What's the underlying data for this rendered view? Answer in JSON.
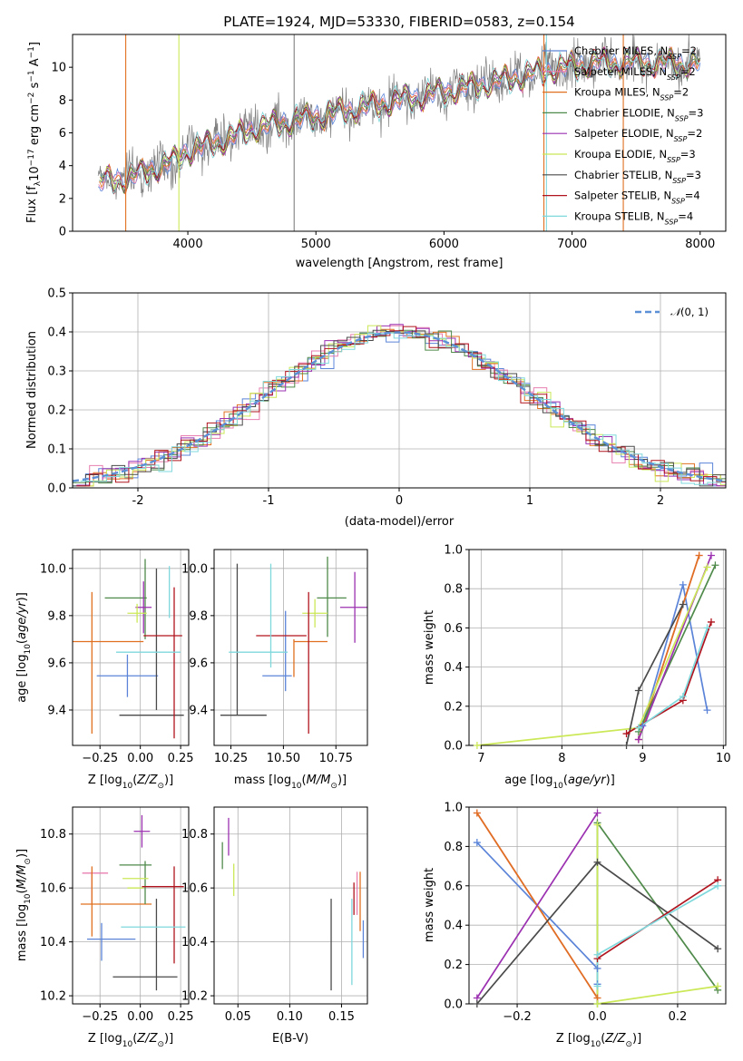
{
  "figure": {
    "title": "PLATE=1924, MJD=53330, FIBERID=0583, z=0.154"
  },
  "colors": {
    "chabrier_miles": "#5b84d8",
    "salpeter_miles": "#e87fb0",
    "kroupa_miles": "#e07020",
    "chabrier_elodie": "#4f8a4a",
    "salpeter_elodie": "#9b30b0",
    "kroupa_elodie": "#cbe857",
    "chabrier_stelib": "#4a4a4a",
    "salpeter_stelib": "#b0141e",
    "kroupa_stelib": "#7fd8dc",
    "data": "#808080",
    "normal": "#5b8fd6",
    "grid": "#b0b0b0"
  },
  "legend": {
    "items": [
      {
        "label": "Chabrier MILES, N",
        "sub": "SSP",
        "suffix": "=2",
        "color_key": "chabrier_miles"
      },
      {
        "label": "Salpeter MILES, N",
        "sub": "SSP",
        "suffix": "=2",
        "color_key": "salpeter_miles"
      },
      {
        "label": "Kroupa MILES, N",
        "sub": "SSP",
        "suffix": "=2",
        "color_key": "kroupa_miles"
      },
      {
        "label": "Chabrier ELODIE, N",
        "sub": "SSP",
        "suffix": "=3",
        "color_key": "chabrier_elodie"
      },
      {
        "label": "Salpeter ELODIE, N",
        "sub": "SSP",
        "suffix": "=2",
        "color_key": "salpeter_elodie"
      },
      {
        "label": "Kroupa ELODIE, N",
        "sub": "SSP",
        "suffix": "=3",
        "color_key": "kroupa_elodie"
      },
      {
        "label": "Chabrier STELIB, N",
        "sub": "SSP",
        "suffix": "=3",
        "color_key": "chabrier_stelib"
      },
      {
        "label": "Salpeter STELIB, N",
        "sub": "SSP",
        "suffix": "=4",
        "color_key": "salpeter_stelib"
      },
      {
        "label": "Kroupa STELIB, N",
        "sub": "SSP",
        "suffix": "=4",
        "color_key": "kroupa_stelib"
      }
    ]
  },
  "chart_data": [
    {
      "id": "spectrum",
      "type": "line",
      "title": "PLATE=1924, MJD=53330, FIBERID=0583, z=0.154",
      "xlabel": "wavelength [Angstrom, rest frame]",
      "ylabel": "Flux [f_λ10^-17 erg cm^-2 s^-1 A^-1]",
      "xlim": [
        3100,
        8200
      ],
      "ylim": [
        0,
        12
      ],
      "xticks": [
        4000,
        5000,
        6000,
        7000,
        8000
      ],
      "yticks": [
        0,
        2,
        4,
        6,
        8,
        10
      ],
      "grid": false,
      "legend_placement": "upper-right",
      "continuum_x": [
        3300,
        3500,
        3700,
        3900,
        4000,
        4300,
        4500,
        4800,
        5200,
        5600,
        6000,
        6400,
        6800,
        7200,
        7600,
        8000
      ],
      "continuum_y": [
        3.0,
        3.2,
        3.7,
        4.3,
        4.9,
        5.6,
        6.2,
        6.7,
        7.3,
        7.9,
        8.5,
        9.1,
        9.8,
        10.3,
        10.3,
        10.2
      ]
    },
    {
      "id": "residual_hist",
      "type": "line",
      "xlabel": "(data-model)/error",
      "ylabel": "Normed distribution",
      "xlim": [
        -2.5,
        2.5
      ],
      "ylim": [
        0,
        0.5
      ],
      "xticks": [
        -2,
        -1,
        0,
        1,
        2
      ],
      "yticks": [
        0.0,
        0.1,
        0.2,
        0.3,
        0.4,
        0.5
      ],
      "grid": true,
      "legend_placement": "upper-right",
      "legend_label": "N(0,1)",
      "bin_width": 0.1
    },
    {
      "id": "age_vs_z",
      "type": "scatter",
      "xlabel": "Z [log10(Z/Z☉)]",
      "ylabel": "age  [log10(age/yr)]",
      "xlim": [
        -0.42,
        0.3
      ],
      "ylim": [
        9.25,
        10.08
      ],
      "xticks": [
        -0.25,
        0.0,
        0.25
      ],
      "xtick_labels": [
        "−0.25",
        "0.00",
        "0.25"
      ],
      "yticks": [
        9.4,
        9.6,
        9.8,
        10.0
      ],
      "grid": true,
      "points": [
        {
          "key": "chabrier_miles",
          "x": -0.08,
          "xerr": 0.19,
          "y": 9.545,
          "yerr": 0.09
        },
        {
          "key": "salpeter_miles",
          "x": -0.3,
          "xerr": 0.0,
          "y": 9.55,
          "yerr": 0.0
        },
        {
          "key": "kroupa_miles",
          "x": -0.2,
          "xerr": 0.22,
          "y": 9.69,
          "yerr": 0.0
        },
        {
          "key": "kroupa_miles_v",
          "x": -0.3,
          "xerr": 0.0,
          "y": 9.6,
          "yerr": 0.3
        },
        {
          "key": "chabrier_elodie",
          "x": 0.03,
          "xerr": 0.0,
          "y": 9.87,
          "yerr": 0.17
        },
        {
          "key": "chabrier_elodie_h",
          "x": -0.09,
          "xerr": 0.13,
          "y": 9.875,
          "yerr": 0.0
        },
        {
          "key": "salpeter_elodie",
          "x": 0.02,
          "xerr": 0.05,
          "y": 9.835,
          "yerr": 0.11
        },
        {
          "key": "kroupa_elodie",
          "x": -0.02,
          "xerr": 0.06,
          "y": 9.81,
          "yerr": 0.04
        },
        {
          "key": "chabrier_stelib",
          "x": 0.07,
          "xerr": 0.2,
          "y": 9.378,
          "yerr": 0.0
        },
        {
          "key": "chabrier_stelib_v",
          "x": 0.1,
          "xerr": 0.0,
          "y": 9.7,
          "yerr": 0.3
        },
        {
          "key": "salpeter_stelib",
          "x": 0.14,
          "xerr": 0.12,
          "y": 9.715,
          "yerr": 0.0
        },
        {
          "key": "salpeter_stelib_v",
          "x": 0.21,
          "xerr": 0.0,
          "y": 9.6,
          "yerr": 0.32
        },
        {
          "key": "kroupa_stelib",
          "x": 0.05,
          "xerr": 0.2,
          "y": 9.645,
          "yerr": 0.0
        },
        {
          "key": "kroupa_stelib_v",
          "x": 0.18,
          "xerr": 0.0,
          "y": 9.9,
          "yerr": 0.11
        }
      ]
    },
    {
      "id": "age_vs_mass",
      "type": "scatter",
      "xlabel": "mass [log10(M/M☉)]",
      "xlim": [
        10.17,
        10.9
      ],
      "ylim": [
        9.25,
        10.08
      ],
      "xticks": [
        10.25,
        10.5,
        10.75
      ],
      "xtick_labels": [
        "10.25",
        "10.50",
        "10.75"
      ],
      "yticks": [
        9.4,
        9.6,
        9.8,
        10.0
      ],
      "grid": true,
      "points": [
        {
          "key": "chabrier_miles",
          "x": 10.47,
          "xerr": 0.07,
          "y": 9.545,
          "yerr": 0.0
        },
        {
          "key": "chabrier_miles_v",
          "x": 10.51,
          "xerr": 0.0,
          "y": 9.65,
          "yerr": 0.17
        },
        {
          "key": "salpeter_miles",
          "x": 10.64,
          "xerr": 0.0,
          "y": 9.82,
          "yerr": 0.0
        },
        {
          "key": "kroupa_miles",
          "x": 10.63,
          "xerr": 0.08,
          "y": 9.69,
          "yerr": 0.0
        },
        {
          "key": "kroupa_miles_v",
          "x": 10.55,
          "xerr": 0.0,
          "y": 9.62,
          "yerr": 0.08
        },
        {
          "key": "chabrier_elodie",
          "x": 10.73,
          "xerr": 0.07,
          "y": 9.875,
          "yerr": 0.0
        },
        {
          "key": "chabrier_elodie_v",
          "x": 10.71,
          "xerr": 0.0,
          "y": 9.88,
          "yerr": 0.17
        },
        {
          "key": "salpeter_elodie",
          "x": 10.84,
          "xerr": 0.07,
          "y": 9.835,
          "yerr": 0.15
        },
        {
          "key": "kroupa_elodie",
          "x": 10.65,
          "xerr": 0.06,
          "y": 9.81,
          "yerr": 0.06
        },
        {
          "key": "chabrier_stelib",
          "x": 10.31,
          "xerr": 0.11,
          "y": 9.378,
          "yerr": 0.0
        },
        {
          "key": "chabrier_stelib_v",
          "x": 10.28,
          "xerr": 0.0,
          "y": 9.7,
          "yerr": 0.32
        },
        {
          "key": "salpeter_stelib",
          "x": 10.49,
          "xerr": 0.12,
          "y": 9.715,
          "yerr": 0.0
        },
        {
          "key": "salpeter_stelib_v",
          "x": 10.62,
          "xerr": 0.0,
          "y": 9.6,
          "yerr": 0.3
        },
        {
          "key": "kroupa_stelib",
          "x": 10.38,
          "xerr": 0.14,
          "y": 9.645,
          "yerr": 0.0
        },
        {
          "key": "kroupa_stelib_v",
          "x": 10.44,
          "xerr": 0.0,
          "y": 9.8,
          "yerr": 0.22
        }
      ]
    },
    {
      "id": "weight_vs_age",
      "type": "line",
      "xlabel": "age  [log10(age/yr)]",
      "ylabel": "mass weight",
      "xlim": [
        6.85,
        10.03
      ],
      "ylim": [
        0,
        1
      ],
      "xticks": [
        7,
        8,
        9,
        10
      ],
      "yticks": [
        0.0,
        0.2,
        0.4,
        0.6,
        0.8,
        1.0
      ],
      "grid": true,
      "series": [
        {
          "key": "chabrier_miles",
          "x": [
            9.0,
            9.5,
            9.8
          ],
          "y": [
            0.1,
            0.82,
            0.18
          ]
        },
        {
          "key": "salpeter_miles",
          "x": [
            8.95,
            9.7
          ],
          "y": [
            0.03,
            0.97
          ]
        },
        {
          "key": "kroupa_miles",
          "x": [
            8.95,
            9.7
          ],
          "y": [
            0.03,
            0.97
          ]
        },
        {
          "key": "chabrier_elodie",
          "x": [
            8.95,
            9.9
          ],
          "y": [
            0.07,
            0.92
          ]
        },
        {
          "key": "salpeter_elodie",
          "x": [
            8.95,
            9.85
          ],
          "y": [
            0.03,
            0.97
          ]
        },
        {
          "key": "kroupa_elodie",
          "x": [
            6.95,
            8.95,
            9.8
          ],
          "y": [
            0.0,
            0.09,
            0.91
          ]
        },
        {
          "key": "chabrier_stelib",
          "x": [
            8.8,
            8.95,
            9.5
          ],
          "y": [
            0.0,
            0.28,
            0.72
          ]
        },
        {
          "key": "salpeter_stelib",
          "x": [
            8.8,
            9.5,
            9.85
          ],
          "y": [
            0.06,
            0.23,
            0.63
          ]
        },
        {
          "key": "kroupa_stelib",
          "x": [
            8.95,
            9.5,
            9.8
          ],
          "y": [
            0.09,
            0.25,
            0.6
          ]
        }
      ]
    },
    {
      "id": "mass_vs_z",
      "type": "scatter",
      "xlabel": "Z [log10(Z/Z☉)]",
      "ylabel": "mass [log10(M/M☉)]",
      "xlim": [
        -0.42,
        0.3
      ],
      "ylim": [
        10.17,
        10.9
      ],
      "xticks": [
        -0.25,
        0.0,
        0.25
      ],
      "xtick_labels": [
        "−0.25",
        "0.00",
        "0.25"
      ],
      "yticks": [
        10.2,
        10.4,
        10.6,
        10.8
      ],
      "grid": true,
      "points": [
        {
          "key": "chabrier_miles",
          "x": -0.18,
          "xerr": 0.15,
          "y": 10.41,
          "yerr": 0.0
        },
        {
          "key": "chabrier_miles_v",
          "x": -0.24,
          "xerr": 0.0,
          "y": 10.4,
          "yerr": 0.07
        },
        {
          "key": "salpeter_miles",
          "x": -0.28,
          "xerr": 0.08,
          "y": 10.655,
          "yerr": 0.0
        },
        {
          "key": "salpeter_miles_v",
          "x": -0.3,
          "xerr": 0.0,
          "y": 10.6,
          "yerr": 0.06
        },
        {
          "key": "kroupa_miles",
          "x": -0.15,
          "xerr": 0.22,
          "y": 10.54,
          "yerr": 0.0
        },
        {
          "key": "kroupa_miles_v",
          "x": -0.3,
          "xerr": 0.0,
          "y": 10.55,
          "yerr": 0.13
        },
        {
          "key": "chabrier_elodie",
          "x": -0.03,
          "xerr": 0.1,
          "y": 10.685,
          "yerr": 0.0
        },
        {
          "key": "chabrier_elodie_v",
          "x": 0.03,
          "xerr": 0.0,
          "y": 10.62,
          "yerr": 0.08
        },
        {
          "key": "salpeter_elodie",
          "x": 0.01,
          "xerr": 0.05,
          "y": 10.81,
          "yerr": 0.06
        },
        {
          "key": "kroupa_elodie",
          "x": -0.03,
          "xerr": 0.08,
          "y": 10.635,
          "yerr": 0.0
        },
        {
          "key": "kroupa_elodie_h",
          "x": -0.03,
          "xerr": 0.05,
          "y": 10.6,
          "yerr": 0.0
        },
        {
          "key": "chabrier_stelib",
          "x": 0.03,
          "xerr": 0.2,
          "y": 10.27,
          "yerr": 0.0
        },
        {
          "key": "chabrier_stelib_v",
          "x": 0.1,
          "xerr": 0.0,
          "y": 10.39,
          "yerr": 0.17
        },
        {
          "key": "salpeter_stelib",
          "x": 0.14,
          "xerr": 0.13,
          "y": 10.605,
          "yerr": 0.0
        },
        {
          "key": "salpeter_stelib_v",
          "x": 0.21,
          "xerr": 0.0,
          "y": 10.5,
          "yerr": 0.18
        },
        {
          "key": "kroupa_stelib",
          "x": 0.08,
          "xerr": 0.2,
          "y": 10.455,
          "yerr": 0.0
        }
      ]
    },
    {
      "id": "mass_vs_ebv",
      "type": "scatter",
      "xlabel": "E(B-V)",
      "xlim": [
        0.027,
        0.175
      ],
      "ylim": [
        10.17,
        10.9
      ],
      "xticks": [
        0.05,
        0.1,
        0.15
      ],
      "xtick_labels": [
        "0.05",
        "0.10",
        "0.15"
      ],
      "yticks": [
        10.2,
        10.4,
        10.6,
        10.8
      ],
      "grid": true,
      "points": [
        {
          "key": "salpeter_elodie",
          "x": 0.041,
          "yerr": 0.07,
          "y": 10.79
        },
        {
          "key": "chabrier_elodie",
          "x": 0.035,
          "yerr": 0.05,
          "y": 10.72
        },
        {
          "key": "kroupa_elodie",
          "x": 0.046,
          "yerr": 0.06,
          "y": 10.63
        },
        {
          "key": "chabrier_stelib",
          "x": 0.14,
          "yerr": 0.17,
          "y": 10.39
        },
        {
          "key": "kroupa_stelib",
          "x": 0.16,
          "yerr": 0.16,
          "y": 10.4
        },
        {
          "key": "salpeter_stelib",
          "x": 0.162,
          "yerr": 0.06,
          "y": 10.56
        },
        {
          "key": "salpeter_miles",
          "x": 0.165,
          "yerr": 0.08,
          "y": 10.58
        },
        {
          "key": "kroupa_miles",
          "x": 0.168,
          "yerr": 0.11,
          "y": 10.55
        },
        {
          "key": "chabrier_miles",
          "x": 0.171,
          "yerr": 0.07,
          "y": 10.41
        }
      ]
    },
    {
      "id": "weight_vs_z",
      "type": "line",
      "xlabel": "Z [log10(Z/Z☉)]",
      "ylabel": "mass weight",
      "xlim": [
        -0.32,
        0.32
      ],
      "ylim": [
        0,
        1
      ],
      "xticks": [
        -0.2,
        0.0,
        0.2
      ],
      "xtick_labels": [
        "−0.2",
        "0.0",
        "0.2"
      ],
      "yticks": [
        0.0,
        0.2,
        0.4,
        0.6,
        0.8,
        1.0
      ],
      "grid": true,
      "series": [
        {
          "key": "chabrier_miles",
          "x": [
            -0.3,
            0.0,
            0.0
          ],
          "y": [
            0.82,
            0.18,
            0.1
          ]
        },
        {
          "key": "salpeter_miles",
          "x": [
            -0.3,
            0.0
          ],
          "y": [
            0.97,
            0.03
          ]
        },
        {
          "key": "kroupa_miles",
          "x": [
            -0.3,
            0.0
          ],
          "y": [
            0.97,
            0.03
          ]
        },
        {
          "key": "chabrier_elodie",
          "x": [
            0.0,
            0.0,
            0.3
          ],
          "y": [
            0.0,
            0.92,
            0.07
          ]
        },
        {
          "key": "salpeter_elodie",
          "x": [
            -0.3,
            0.0
          ],
          "y": [
            0.03,
            0.97
          ]
        },
        {
          "key": "kroupa_elodie",
          "x": [
            0.0,
            0.0,
            0.3
          ],
          "y": [
            0.91,
            0.0,
            0.09
          ]
        },
        {
          "key": "chabrier_stelib",
          "x": [
            -0.3,
            0.0,
            0.3
          ],
          "y": [
            0.0,
            0.72,
            0.28
          ]
        },
        {
          "key": "salpeter_stelib",
          "x": [
            0.0,
            0.3
          ],
          "y": [
            0.23,
            0.63
          ]
        },
        {
          "key": "kroupa_stelib",
          "x": [
            0.0,
            0.0,
            0.3
          ],
          "y": [
            0.09,
            0.25,
            0.6
          ]
        }
      ]
    }
  ]
}
